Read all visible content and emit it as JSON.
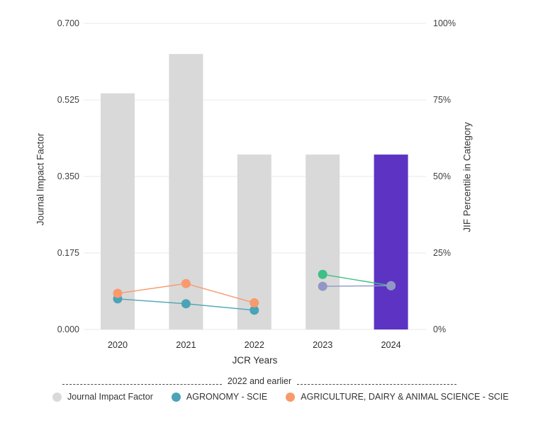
{
  "chart_data": {
    "type": "combo-bar-line",
    "categories": [
      "2020",
      "2021",
      "2022",
      "2023",
      "2024"
    ],
    "bar_series": {
      "name": "Journal Impact Factor",
      "values": [
        0.54,
        0.63,
        0.4,
        0.4,
        0.4
      ],
      "color": "#d9d9d9",
      "highlight_year": "2024",
      "highlight_color": "#5c33c3"
    },
    "line_series": [
      {
        "id": "agronomy-scie",
        "legend_label": "AGRONOMY - SCIE",
        "color": "#4aa4b6",
        "x": [
          "2020",
          "2021",
          "2022"
        ],
        "values": [
          10.0,
          8.4,
          6.3
        ]
      },
      {
        "id": "agriculture-dairy-animal-science-scie",
        "legend_label": "AGRICULTURE, DAIRY & ANIMAL SCIENCE - SCIE",
        "color": "#f89a6d",
        "x": [
          "2020",
          "2021",
          "2022"
        ],
        "values": [
          11.8,
          15.0,
          8.7
        ]
      },
      {
        "id": "line-green-2023-2024",
        "color": "#3fbe86",
        "x": [
          "2023",
          "2024"
        ],
        "values": [
          18.0,
          14.3
        ]
      },
      {
        "id": "line-slate-2023-2024",
        "color": "#9297c6",
        "x": [
          "2023",
          "2024"
        ],
        "values": [
          14.1,
          14.3
        ]
      }
    ],
    "axes": {
      "left": {
        "title": "Journal Impact Factor",
        "ticks": [
          "0.000",
          "0.175",
          "0.350",
          "0.525",
          "0.700"
        ],
        "min": 0,
        "max": 0.7
      },
      "right": {
        "title": "JIF Percentile in Category",
        "ticks": [
          "0%",
          "25%",
          "50%",
          "75%",
          "100%"
        ],
        "min": 0,
        "max": 100
      },
      "x": {
        "title": "JCR Years"
      }
    },
    "grid": true,
    "legend_position": "bottom"
  },
  "legend": {
    "divider_label": "2022 and earlier",
    "items": [
      {
        "label": "Journal Impact Factor",
        "color": "#d9d9d9"
      },
      {
        "label": "AGRONOMY - SCIE",
        "color": "#4aa4b6"
      },
      {
        "label": "AGRICULTURE, DAIRY & ANIMAL SCIENCE - SCIE",
        "color": "#f89a6d"
      }
    ]
  },
  "colors": {
    "background": "#ffffff",
    "gridline": "#e8e8e8",
    "axis_text": "#3f3f3f",
    "bar_default": "#d9d9d9",
    "bar_highlight": "#5c33c3"
  }
}
